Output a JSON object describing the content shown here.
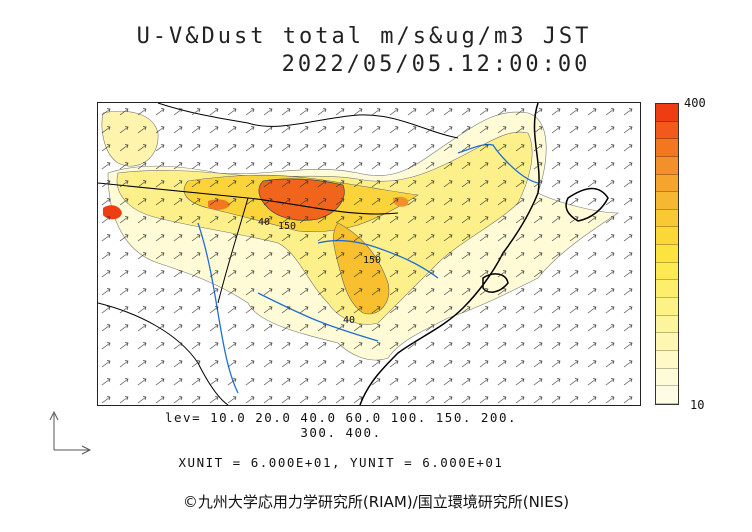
{
  "title": {
    "line1": "U-V&Dust total m/s&ug/m3 JST",
    "line2": "2022/05/05.12:00:00"
  },
  "colorbar": {
    "max_label": "400",
    "min_label": "10",
    "colors": [
      "#ee3d12",
      "#f15a1a",
      "#f2771f",
      "#f3902a",
      "#f5a52c",
      "#f7b831",
      "#f9c935",
      "#fbd838",
      "#fce33e",
      "#fdea52",
      "#fdef6c",
      "#fdf285",
      "#fdf59d",
      "#fdf7b3",
      "#fef9c6",
      "#fefbd8",
      "#fffce6"
    ]
  },
  "levels": {
    "line1": "lev= 10.0 20.0 40.0 60.0 100. 150. 200.",
    "line2": "300. 400."
  },
  "units": "XUNIT = 6.000E+01, YUNIT = 6.000E+01",
  "contour_labels": {
    "a": "40",
    "b": "150",
    "c": "150",
    "d": "40"
  },
  "credit": "©九州大学応用力学研究所(RIAM)/国立環境研究所(NIES)"
}
